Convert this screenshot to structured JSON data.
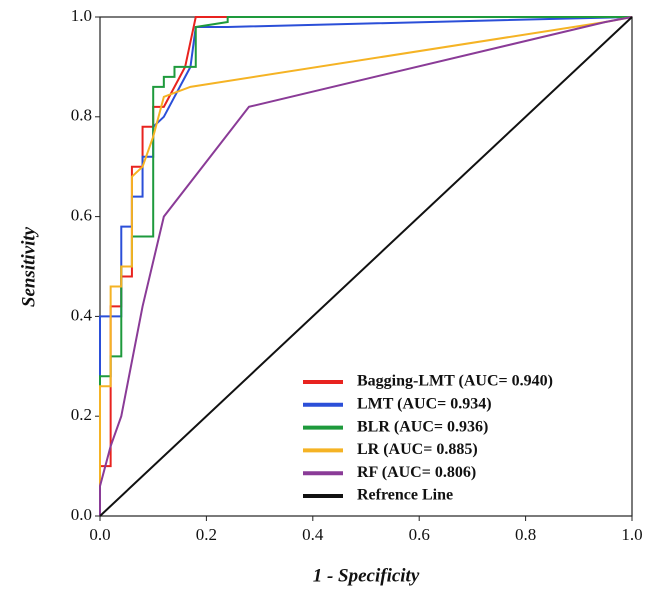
{
  "chart_data": {
    "type": "line",
    "xlabel": "1 - Specificity",
    "ylabel": "Sensitivity",
    "xlim": [
      0,
      1
    ],
    "ylim": [
      0,
      1
    ],
    "xticks": [
      {
        "value": 0,
        "label": "0.0"
      },
      0.2,
      0.4,
      0.6,
      0.8,
      {
        "value": 1,
        "label": "1.0"
      }
    ],
    "yticks": [
      {
        "value": 0,
        "label": "0.0"
      },
      0.2,
      0.4,
      0.6,
      0.8,
      {
        "value": 1,
        "label": "1.0"
      }
    ],
    "legend": "lower right",
    "series": [
      {
        "name": "Bagging-LMT (AUC= 0.940)",
        "color": "#e8231f",
        "x": [
          0,
          0,
          0.02,
          0.02,
          0.04,
          0.04,
          0.06,
          0.06,
          0.08,
          0.08,
          0.1,
          0.1,
          0.12,
          0.14,
          0.16,
          0.17,
          0.18,
          1
        ],
        "values": [
          0,
          0.1,
          0.1,
          0.42,
          0.42,
          0.48,
          0.48,
          0.7,
          0.7,
          0.78,
          0.78,
          0.82,
          0.82,
          0.86,
          0.9,
          0.95,
          1,
          1
        ]
      },
      {
        "name": "LMT (AUC= 0.934)",
        "color": "#2b4fd8",
        "x": [
          0,
          0,
          0.04,
          0.04,
          0.06,
          0.06,
          0.08,
          0.08,
          0.1,
          0.1,
          0.12,
          0.14,
          0.16,
          0.17,
          0.18,
          0.24,
          1
        ],
        "values": [
          0,
          0.4,
          0.4,
          0.58,
          0.58,
          0.64,
          0.64,
          0.72,
          0.72,
          0.78,
          0.8,
          0.84,
          0.88,
          0.9,
          0.98,
          0.98,
          1
        ]
      },
      {
        "name": "BLR (AUC= 0.936)",
        "color": "#1e9a3c",
        "x": [
          0,
          0,
          0.02,
          0.02,
          0.04,
          0.04,
          0.06,
          0.06,
          0.1,
          0.1,
          0.12,
          0.12,
          0.14,
          0.14,
          0.18,
          0.18,
          0.24,
          0.24,
          1
        ],
        "values": [
          0,
          0.28,
          0.28,
          0.32,
          0.32,
          0.5,
          0.5,
          0.56,
          0.56,
          0.86,
          0.86,
          0.88,
          0.88,
          0.9,
          0.9,
          0.98,
          0.99,
          1,
          1
        ]
      },
      {
        "name": "LR (AUC= 0.885)",
        "color": "#f5b324",
        "x": [
          0,
          0,
          0.02,
          0.02,
          0.04,
          0.04,
          0.06,
          0.06,
          0.08,
          0.1,
          0.12,
          0.17,
          0.95,
          1
        ],
        "values": [
          0,
          0.26,
          0.26,
          0.46,
          0.46,
          0.5,
          0.5,
          0.68,
          0.7,
          0.76,
          0.84,
          0.86,
          0.99,
          1
        ]
      },
      {
        "name": "RF (AUC= 0.806)",
        "color": "#8a3b97",
        "x": [
          0,
          0,
          0.02,
          0.04,
          0.08,
          0.12,
          0.28,
          0.95,
          1
        ],
        "values": [
          0,
          0.06,
          0.14,
          0.2,
          0.42,
          0.6,
          0.82,
          0.99,
          1
        ]
      },
      {
        "name": "Refrence Line",
        "color": "#111111",
        "x": [
          0,
          1
        ],
        "values": [
          0,
          1
        ]
      }
    ]
  }
}
